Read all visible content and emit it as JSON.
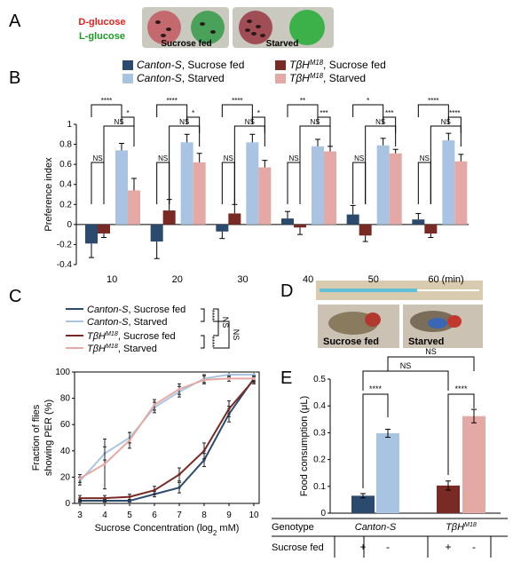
{
  "colors": {
    "canton_fed": "#2c4a6e",
    "canton_starved": "#a9c4e2",
    "tbh_fed": "#7a2a24",
    "tbh_starved": "#e4a9a5",
    "dglucose": "#e8201c",
    "lglucose": "#1a9a22"
  },
  "panelA": {
    "letter": "A",
    "dglucose_label": "D-glucose",
    "lglucose_label": "L-glucose",
    "fed_label": "Sucrose fed",
    "starved_label": "Starved"
  },
  "panelD": {
    "letter": "D",
    "fed_label": "Sucrose fed",
    "starved_label": "Starved"
  },
  "chart_data": [
    {
      "panel": "B",
      "type": "bar",
      "ylabel": "Preference index",
      "xunit": "(min)",
      "ylim": [
        -0.4,
        1.0
      ],
      "yticks": [
        "1",
        "0.8",
        "0.6",
        "0.4",
        "0.2",
        "0",
        "-0.2",
        "-0.4"
      ],
      "categories": [
        "10",
        "20",
        "30",
        "40",
        "50",
        "60"
      ],
      "legend": [
        {
          "main": "Canton-S",
          "sup": "",
          "rest": ", Sucrose fed"
        },
        {
          "main": "TβH",
          "sup": "M18",
          "rest": ", Sucrose fed"
        },
        {
          "main": "Canton-S",
          "sup": "",
          "rest": ", Starved"
        },
        {
          "main": "TβH",
          "sup": "M18",
          "rest": ", Starved"
        }
      ],
      "series": [
        {
          "values": [
            -0.19,
            -0.17,
            -0.07,
            0.06,
            0.1,
            0.05
          ],
          "errors": [
            0.14,
            0.17,
            0.07,
            0.07,
            0.09,
            0.06
          ]
        },
        {
          "values": [
            -0.09,
            0.14,
            0.11,
            -0.03,
            -0.11,
            -0.09
          ],
          "errors": [
            0.04,
            0.11,
            0.09,
            0.07,
            0.06,
            0.04
          ]
        },
        {
          "values": [
            0.74,
            0.82,
            0.82,
            0.78,
            0.79,
            0.84
          ],
          "errors": [
            0.07,
            0.08,
            0.08,
            0.07,
            0.07,
            0.07
          ]
        },
        {
          "values": [
            0.34,
            0.62,
            0.57,
            0.73,
            0.71,
            0.63
          ],
          "errors": [
            0.12,
            0.09,
            0.07,
            0.05,
            0.04,
            0.07
          ]
        }
      ],
      "significance": [
        [
          "****",
          "*",
          "NS",
          "NS"
        ],
        [
          "****",
          "*",
          "NS",
          "NS"
        ],
        [
          "****",
          "*",
          "NS",
          "NS"
        ],
        [
          "**",
          "***",
          "NS",
          "NS"
        ],
        [
          "*",
          "***",
          "NS",
          "NS"
        ],
        [
          "****",
          "****",
          "NS",
          "NS"
        ]
      ]
    },
    {
      "panel": "C",
      "type": "line",
      "ylabel_line1": "Fraction of flies",
      "ylabel_line2": "showing PER (%)",
      "xlabel_main": "Sucrose Concentration (log",
      "xlabel_sub": "2",
      "xlabel_end": " mM)",
      "xlim": [
        3,
        10
      ],
      "ylim": [
        0,
        100
      ],
      "x": [
        3,
        4,
        5,
        6,
        7,
        8,
        9,
        10
      ],
      "yticks": [
        "100",
        "80",
        "60",
        "40",
        "20",
        "0"
      ],
      "legend": [
        {
          "main": "Canton-S",
          "sup": "",
          "rest": ", Sucrose fed"
        },
        {
          "main": "Canton-S",
          "sup": "",
          "rest": ", Starved"
        },
        {
          "main": "TβH",
          "sup": "M18",
          "rest": ", Sucrose fed"
        },
        {
          "main": "TβH",
          "sup": "M18",
          "rest": ", Starved"
        }
      ],
      "series": [
        {
          "values": [
            2,
            2,
            2,
            7,
            12,
            33,
            68,
            95
          ],
          "errors": [
            1,
            1,
            1,
            2,
            4,
            5,
            6,
            3
          ]
        },
        {
          "values": [
            17,
            38,
            50,
            73,
            85,
            95,
            98,
            98
          ],
          "errors": [
            3,
            5,
            4,
            4,
            4,
            3,
            2,
            2
          ]
        },
        {
          "values": [
            4,
            4,
            5,
            10,
            22,
            40,
            72,
            94
          ],
          "errors": [
            2,
            2,
            2,
            3,
            5,
            6,
            6,
            3
          ]
        },
        {
          "values": [
            19,
            30,
            48,
            75,
            87,
            94,
            95,
            95
          ],
          "errors": [
            3,
            19,
            6,
            4,
            4,
            3,
            2,
            2
          ]
        }
      ],
      "significance": [
        "****",
        "****",
        "NS",
        "NS"
      ]
    },
    {
      "panel": "E",
      "type": "bar",
      "ylabel": "Food consumption (μL)",
      "ylim": [
        0,
        0.5
      ],
      "yticks": [
        "0.5",
        "0.4",
        "0.3",
        "0.2",
        "0.1",
        "0"
      ],
      "genotype_label": "Genotype",
      "sucrose_label": "Sucrose fed",
      "groups": [
        {
          "main": "Canton-S",
          "sup": ""
        },
        {
          "main": "TβH",
          "sup": "M18"
        }
      ],
      "fed_marks": [
        "+",
        "-",
        "+",
        "-"
      ],
      "values": [
        0.065,
        0.298,
        0.103,
        0.362
      ],
      "errors": [
        0.008,
        0.015,
        0.017,
        0.025
      ],
      "significance": [
        "****",
        "****",
        "NS",
        "NS"
      ]
    }
  ]
}
